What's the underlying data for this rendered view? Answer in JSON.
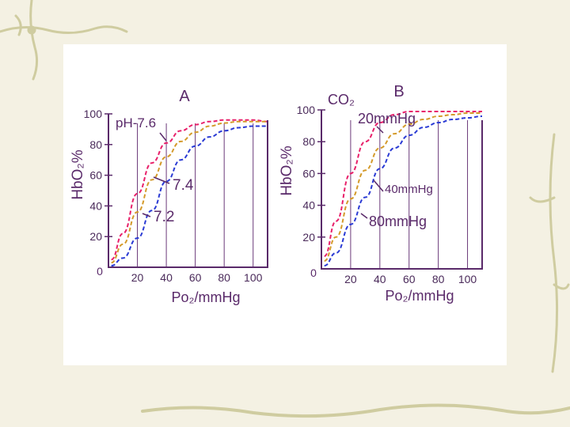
{
  "colors": {
    "background": "#f4f1e3",
    "vine": "#cfcca0",
    "axis": "#5a2a6a",
    "curve_high": "#e8206a",
    "curve_mid": "#d49a2a",
    "curve_low": "#2a3ad4"
  },
  "chart_data": [
    {
      "type": "line",
      "title": "A",
      "xlabel": "Po₂/mmHg",
      "ylabel": "HbO₂%",
      "xlim": [
        0,
        110
      ],
      "ylim": [
        0,
        100
      ],
      "xticks": [
        20,
        40,
        60,
        80,
        100
      ],
      "yticks": [
        0,
        20,
        40,
        60,
        80,
        100
      ],
      "grid": true,
      "curve_labels": [
        "pH-7.6",
        "7.4",
        "7.2"
      ],
      "series": [
        {
          "name": "pH-7.6",
          "color": "#e8206a",
          "x": [
            2,
            10,
            20,
            30,
            40,
            50,
            60,
            70,
            80,
            90,
            100,
            110
          ],
          "y": [
            5,
            22,
            48,
            68,
            81,
            89,
            93,
            95,
            96,
            96,
            96,
            95
          ]
        },
        {
          "name": "7.4",
          "color": "#d49a2a",
          "x": [
            2,
            10,
            20,
            30,
            40,
            50,
            60,
            70,
            80,
            90,
            100,
            110
          ],
          "y": [
            3,
            15,
            36,
            57,
            72,
            82,
            88,
            92,
            94,
            95,
            95,
            95
          ]
        },
        {
          "name": "7.2",
          "color": "#2a3ad4",
          "x": [
            2,
            10,
            20,
            30,
            40,
            50,
            60,
            70,
            80,
            90,
            100,
            110
          ],
          "y": [
            1,
            6,
            19,
            37,
            56,
            70,
            79,
            85,
            89,
            91,
            92,
            92
          ]
        }
      ]
    },
    {
      "type": "line",
      "title": "B",
      "xlabel": "Po₂/mmHg",
      "ylabel": "HbO₂%",
      "legend_title": "CO₂",
      "xlim": [
        0,
        110
      ],
      "ylim": [
        0,
        100
      ],
      "xticks": [
        20,
        40,
        60,
        80,
        100
      ],
      "yticks": [
        0,
        20,
        40,
        60,
        80,
        100
      ],
      "grid": true,
      "curve_labels": [
        "20mmHg",
        "40mmHg",
        "80mmHg"
      ],
      "series": [
        {
          "name": "20mmHg",
          "color": "#e8206a",
          "x": [
            2,
            10,
            20,
            30,
            40,
            50,
            60,
            70,
            80,
            90,
            100,
            110
          ],
          "y": [
            8,
            30,
            60,
            80,
            92,
            97,
            99,
            99,
            99,
            99,
            99,
            99
          ]
        },
        {
          "name": "40mmHg",
          "color": "#d49a2a",
          "x": [
            2,
            10,
            20,
            30,
            40,
            50,
            60,
            70,
            80,
            90,
            100,
            110
          ],
          "y": [
            5,
            20,
            44,
            62,
            76,
            85,
            91,
            94,
            96,
            97,
            98,
            98
          ]
        },
        {
          "name": "80mmHg",
          "color": "#2a3ad4",
          "x": [
            2,
            10,
            20,
            30,
            40,
            50,
            60,
            70,
            80,
            90,
            100,
            110
          ],
          "y": [
            2,
            10,
            28,
            45,
            63,
            76,
            84,
            89,
            92,
            94,
            95,
            96
          ]
        }
      ]
    }
  ]
}
